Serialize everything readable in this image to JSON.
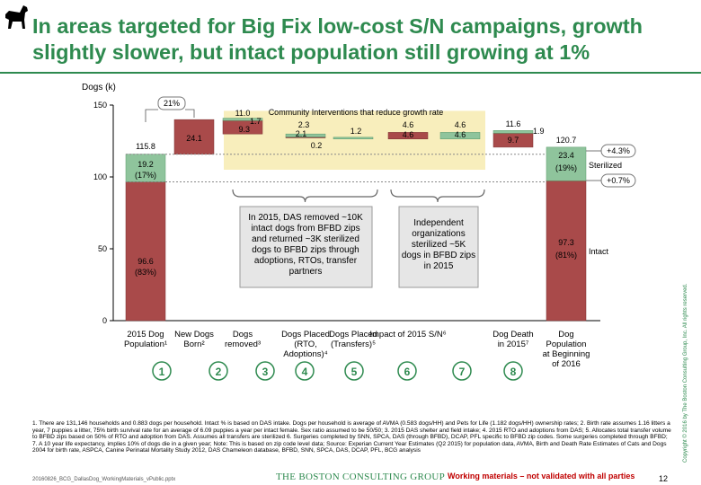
{
  "title": "In areas targeted for Big Fix low-cost S/N campaigns, growth slightly slower, but intact population still growing at 1%",
  "colors": {
    "accent": "#2e8a4f",
    "intact": "#a94a4a",
    "sterilized": "#8fc49c",
    "highlight": "#f8eebc"
  },
  "chart_data": {
    "type": "waterfall",
    "ylabel": "Dogs (k)",
    "ylim": [
      0,
      150
    ],
    "yticks": [
      0,
      50,
      100,
      150
    ],
    "highlight_title": "Community Interventions that reduce growth rate",
    "bars": [
      {
        "id": "b1",
        "base": 0,
        "intact": 96.6,
        "sterilized": 19.2,
        "total_label": "115.8",
        "intact_label": "96.6",
        "intact_pct": "(83%)",
        "ster_label": "19.2",
        "ster_pct": "(17%)"
      },
      {
        "id": "b2",
        "base": 115.8,
        "intact": 24.1,
        "intact_label": "24.1"
      },
      {
        "id": "b3",
        "base": 129.9,
        "intact": 9.3,
        "sterilized": 1.7,
        "total_label": "11.0",
        "intact_label": "9.3",
        "ster_label": "1.7"
      },
      {
        "id": "b4",
        "base": 127.6,
        "intact": 0.2,
        "sterilized": 2.1,
        "total_label": "2.3",
        "intact_label": "0.2",
        "ster_label": "2.1"
      },
      {
        "id": "b5",
        "base": 126.4,
        "sterilized": 1.2,
        "ster_label": "1.2"
      },
      {
        "id": "b6",
        "base": 126.4,
        "intact": 4.6,
        "intact_label": "4.6",
        "total_label": "4.6"
      },
      {
        "id": "b7",
        "base": 126.4,
        "sterilized": 4.6,
        "ster_label": "4.6",
        "total_label": "4.6"
      },
      {
        "id": "b8",
        "base": 120.7,
        "intact": 9.7,
        "sterilized": 1.9,
        "total_label": "11.6",
        "intact_label": "9.7",
        "ster_label": "1.9"
      },
      {
        "id": "b9",
        "base": 0,
        "intact": 97.3,
        "sterilized": 23.4,
        "total_label": "120.7",
        "intact_label": "97.3",
        "intact_pct": "(81%)",
        "ster_label": "23.4",
        "ster_pct": "(19%)"
      }
    ],
    "categories": [
      {
        "lines": [
          "2015 Dog",
          "Population¹"
        ]
      },
      {
        "lines": [
          "New Dogs",
          "Born²"
        ]
      },
      {
        "lines": [
          "Dogs",
          "removed³"
        ]
      },
      {
        "lines": [
          "Dogs Placed",
          "(RTO,",
          "Adoptions)⁴"
        ]
      },
      {
        "lines": [
          "Dogs Placed",
          "(Transfers)⁵"
        ]
      },
      {
        "lines": [
          "Impact of 2015 S/N⁶"
        ]
      },
      {
        "lines": [
          ""
        ]
      },
      {
        "lines": [
          "Dog Death",
          "in 2015⁷"
        ]
      },
      {
        "lines": [
          "Dog",
          "Population",
          "at Beginning",
          "of 2016"
        ]
      }
    ],
    "numbers": [
      "1",
      "2",
      "3",
      "4",
      "5",
      "6",
      "7",
      "8"
    ],
    "growth_label": "21%",
    "sterilized_growth": "+4.3%",
    "intact_growth": "+0.7%",
    "legend_sterilized": "Sterilized",
    "legend_intact": "Intact",
    "callout_left": "In 2015, DAS removed ~10K intact dogs from BFBD zips and returned ~3K sterilized dogs to BFBD zips through adoptions, RTOs, transfer partners",
    "callout_right": "Independent organizations sterilized ~5K dogs in BFBD zips in 2015"
  },
  "footnote": "1. There are 131,146 households and 0.883 dogs per household. Intact % is based on DAS intake. Dogs per household is average of AVMA (0.583 dogs/HH) and Pets for Life (1.182 dogs/HH) ownership rates; 2. Birth rate assumes 1.16 litters a year, 7 puppies a litter, 75% birth survival rate for an average of 6.09 puppies a year per intact female. Sex ratio assumed to be 50/50; 3. 2015 DAS shelter and field intake; 4. 2015 RTO and adoptions from DAS; 5. Allocates total transfer volume to BFBD zips based on 50% of RTO and adoption from DAS. Assumes all transfers are sterilized 6. Surgeries completed by SNN, SPCA, DAS (through BFBD), DCAP, PFL specific to BFBD zip codes. Some surgeries completed through BFBD; 7. A 10 year life expectancy, implies 10% of dogs die in a given year; Note: This is based on zip code level data; Source: Experian Current Year Estimates (Q2 2015) for population data, AVMA, Birth and Death Rate Estimates of Cats and Dogs 2004 for birth rate, ASPCA, Canine Perinatal Mortality Study 2012, DAS Chameleon database, BFBD, SNN, SPCA, DAS, DCAP, PFL, BCG analysis",
  "file_id": "20160826_BCG_DallasDog_WorkingMaterials_vPublic.pptx",
  "company": "THE BOSTON CONSULTING GROUP",
  "warning": "Working materials – not validated with all parties",
  "page_number": "12",
  "copyright": "Copyright © 2016 by The Boston Consulting Group, Inc. All rights reserved."
}
